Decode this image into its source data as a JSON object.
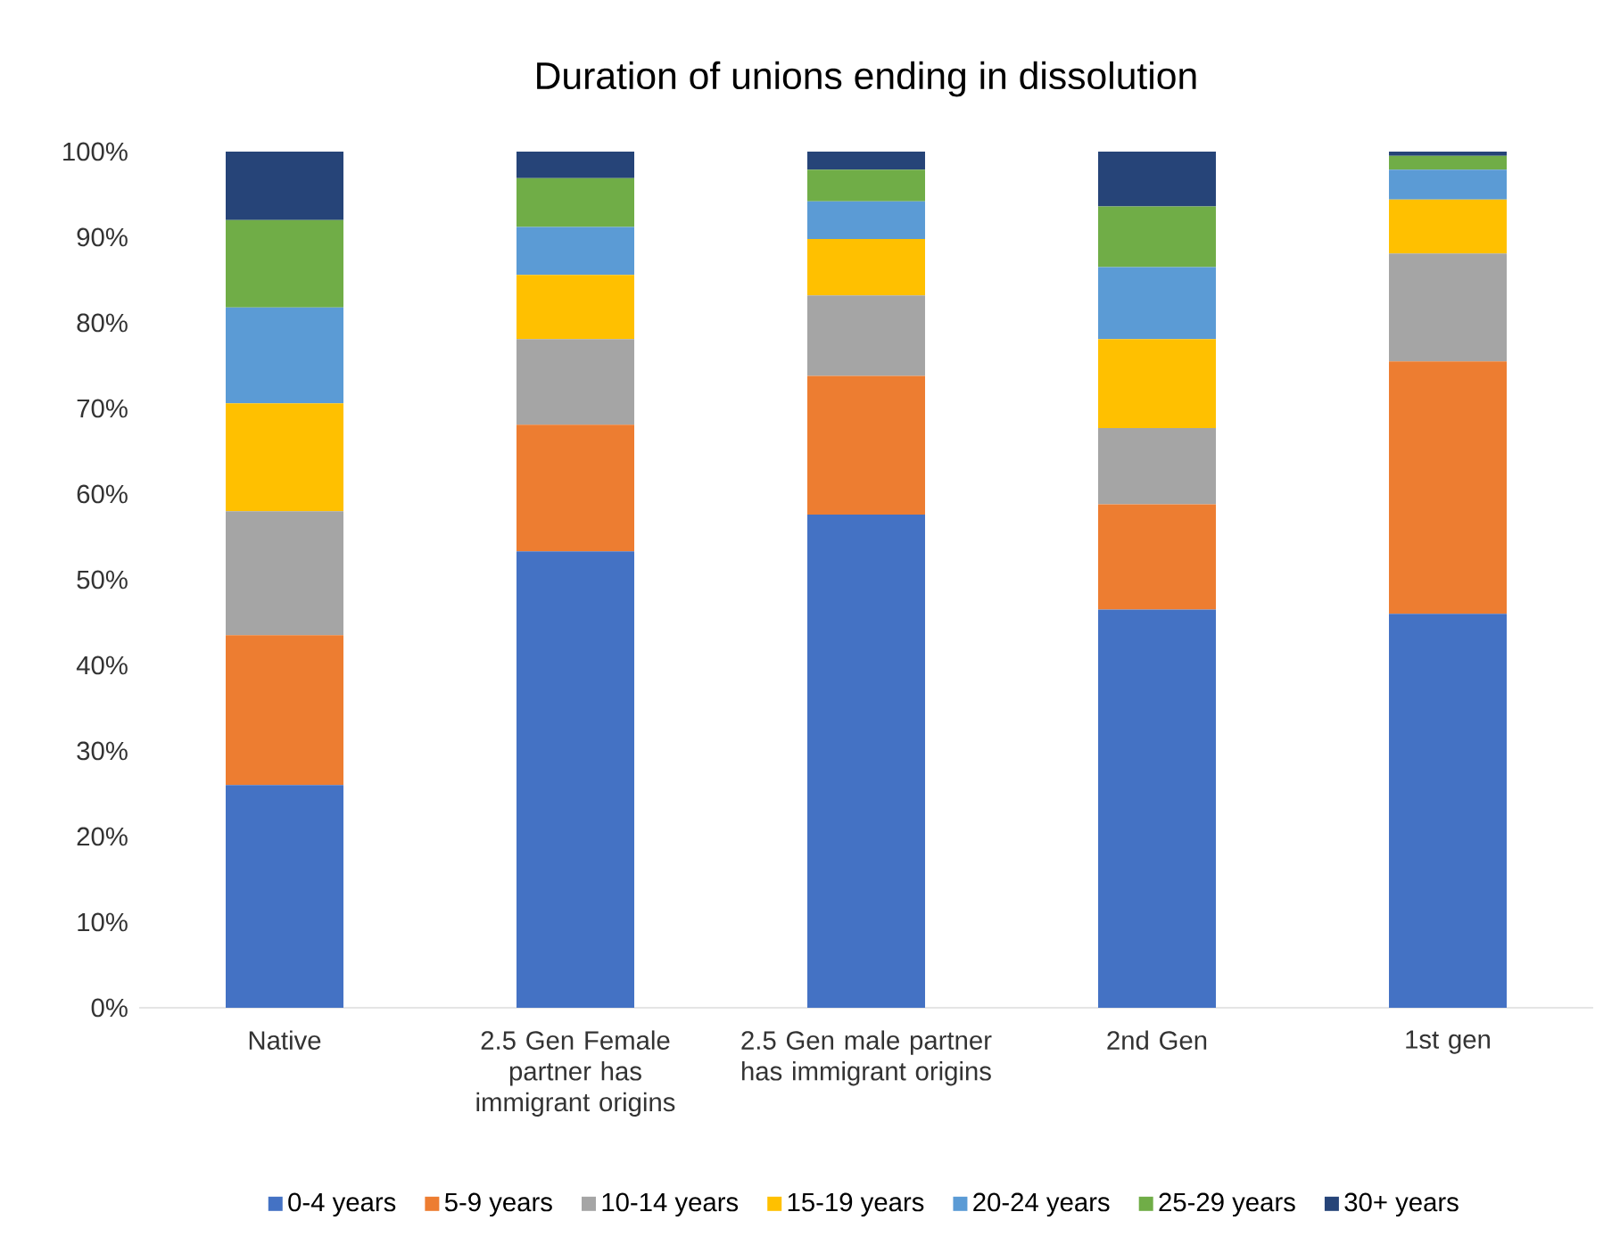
{
  "chart_data": {
    "type": "bar",
    "title": "Duration of unions ending in dissolution",
    "stacked": true,
    "categories": [
      "Native",
      "2.5 Gen Female partner has immigrant origins",
      "2.5 Gen male partner has immigrant origins",
      "2nd Gen",
      "1st gen"
    ],
    "series": [
      {
        "name": "0-4 years",
        "color": "#4472c4",
        "values": [
          26.0,
          53.3,
          57.6,
          46.5,
          46.0
        ]
      },
      {
        "name": "5-9 years",
        "color": "#ed7d31",
        "values": [
          17.5,
          14.8,
          16.2,
          12.3,
          29.5
        ]
      },
      {
        "name": "10-14 years",
        "color": "#a5a5a5",
        "values": [
          14.5,
          10.0,
          9.4,
          8.9,
          12.6
        ]
      },
      {
        "name": "15-19 years",
        "color": "#ffc000",
        "values": [
          12.6,
          7.5,
          6.6,
          10.4,
          6.3
        ]
      },
      {
        "name": "20-24 years",
        "color": "#5b9bd5",
        "values": [
          11.2,
          5.6,
          4.4,
          8.4,
          3.5
        ]
      },
      {
        "name": "25-29 years",
        "color": "#70ad47",
        "values": [
          10.2,
          5.7,
          3.7,
          7.1,
          1.6
        ]
      },
      {
        "name": "30+ years",
        "color": "#264478",
        "values": [
          8.0,
          3.1,
          2.1,
          6.4,
          0.5
        ]
      }
    ],
    "ylim": [
      0,
      100
    ],
    "yticks": [
      {
        "value": 0,
        "label": "0%"
      },
      {
        "value": 10,
        "label": "10%"
      },
      {
        "value": 20,
        "label": "20%"
      },
      {
        "value": 30,
        "label": "30%"
      },
      {
        "value": 40,
        "label": "40%"
      },
      {
        "value": 50,
        "label": "50%"
      },
      {
        "value": 60,
        "label": "60%"
      },
      {
        "value": 70,
        "label": "70%"
      },
      {
        "value": 80,
        "label": "80%"
      },
      {
        "value": 90,
        "label": "90%"
      },
      {
        "value": 100,
        "label": "100%"
      }
    ],
    "grid": false,
    "legend": "bottom"
  }
}
